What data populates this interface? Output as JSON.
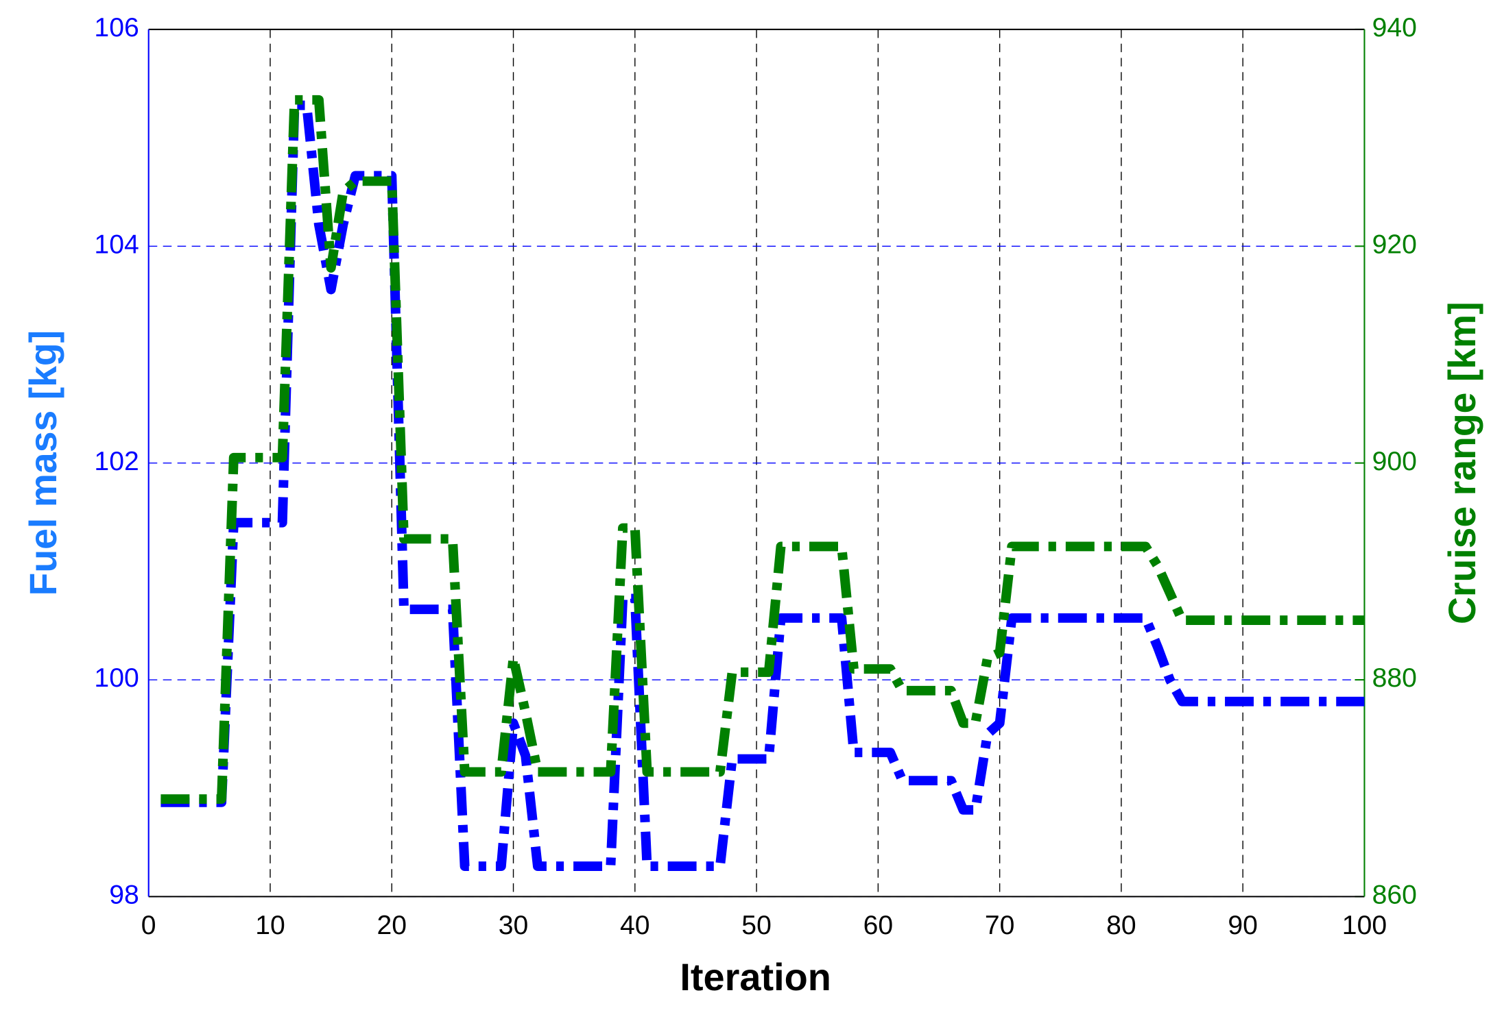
{
  "chart_data": {
    "type": "line",
    "xlabel": "Iteration",
    "ylabel": "Fuel mass [kg]",
    "y2label": "Cruise range [km]",
    "x": [
      1,
      2,
      3,
      4,
      5,
      6,
      7,
      8,
      9,
      10,
      11,
      12,
      13,
      14,
      15,
      16,
      17,
      18,
      19,
      20,
      21,
      22,
      23,
      24,
      25,
      26,
      27,
      28,
      29,
      30,
      31,
      32,
      33,
      34,
      35,
      36,
      37,
      38,
      39,
      40,
      41,
      42,
      43,
      44,
      45,
      46,
      47,
      48,
      49,
      50,
      51,
      52,
      53,
      54,
      55,
      56,
      57,
      58,
      59,
      60,
      61,
      62,
      63,
      64,
      65,
      66,
      67,
      68,
      69,
      70,
      71,
      72,
      73,
      74,
      75,
      76,
      77,
      78,
      79,
      80,
      81,
      82,
      83,
      84,
      85,
      86,
      87,
      88,
      89,
      90,
      91,
      92,
      93,
      94,
      95,
      96,
      97,
      98,
      99,
      100
    ],
    "series": [
      {
        "color": "#0000ff",
        "values": [
          98.87,
          98.87,
          98.87,
          98.87,
          98.87,
          98.87,
          101.45,
          101.45,
          101.45,
          101.45,
          101.45,
          105.3,
          105.3,
          104.2,
          103.6,
          104.2,
          104.65,
          104.65,
          104.65,
          104.65,
          100.65,
          100.65,
          100.65,
          100.65,
          100.65,
          98.28,
          98.28,
          98.28,
          98.28,
          99.6,
          99.3,
          98.28,
          98.28,
          98.28,
          98.28,
          98.28,
          98.28,
          98.28,
          100.75,
          100.75,
          98.28,
          98.28,
          98.28,
          98.28,
          98.28,
          98.28,
          98.28,
          99.27,
          99.27,
          99.27,
          99.27,
          100.57,
          100.57,
          100.57,
          100.57,
          100.57,
          100.57,
          99.33,
          99.33,
          99.33,
          99.33,
          99.07,
          99.07,
          99.07,
          99.07,
          99.07,
          98.8,
          98.8,
          99.5,
          99.6,
          100.57,
          100.57,
          100.57,
          100.57,
          100.57,
          100.57,
          100.57,
          100.57,
          100.57,
          100.57,
          100.57,
          100.57,
          100.3,
          100.0,
          99.8,
          99.8,
          99.8,
          99.8,
          99.8,
          99.8,
          99.8,
          99.8,
          99.8,
          99.8,
          99.8,
          99.8,
          99.8,
          99.8,
          99.8,
          99.8
        ]
      },
      {
        "color": "#008000",
        "axis": "y2",
        "values": [
          869,
          869,
          869,
          869,
          869,
          869,
          900.5,
          900.5,
          900.5,
          900.5,
          900.5,
          933.5,
          933.5,
          933.5,
          918,
          925,
          926,
          926,
          926,
          926,
          893,
          893,
          893,
          893,
          893,
          871.5,
          871.5,
          871.5,
          871.5,
          882,
          877,
          871.5,
          871.5,
          871.5,
          871.5,
          871.5,
          871.5,
          871.5,
          894,
          894,
          871.5,
          871.5,
          871.5,
          871.5,
          871.5,
          871.5,
          871.5,
          880.7,
          880.7,
          880.7,
          880.7,
          892.3,
          892.3,
          892.3,
          892.3,
          892.3,
          892.3,
          881,
          881,
          881,
          881,
          879,
          879,
          879,
          879,
          879,
          876,
          876,
          882,
          882.5,
          892.3,
          892.3,
          892.3,
          892.3,
          892.3,
          892.3,
          892.3,
          892.3,
          892.3,
          892.3,
          892.3,
          892.3,
          890.5,
          888,
          885.5,
          885.5,
          885.5,
          885.5,
          885.5,
          885.5,
          885.5,
          885.5,
          885.5,
          885.5,
          885.5,
          885.5,
          885.5,
          885.5,
          885.5,
          885.5
        ]
      }
    ],
    "xlim": [
      0,
      100
    ],
    "xticks": [
      0,
      10,
      20,
      30,
      40,
      50,
      60,
      70,
      80,
      90,
      100
    ],
    "ylim": [
      98,
      106
    ],
    "yticks": [
      98,
      100,
      102,
      104,
      106
    ],
    "y2lim": [
      860,
      940
    ],
    "y2ticks": [
      860,
      880,
      900,
      920,
      940
    ],
    "grid": true
  }
}
